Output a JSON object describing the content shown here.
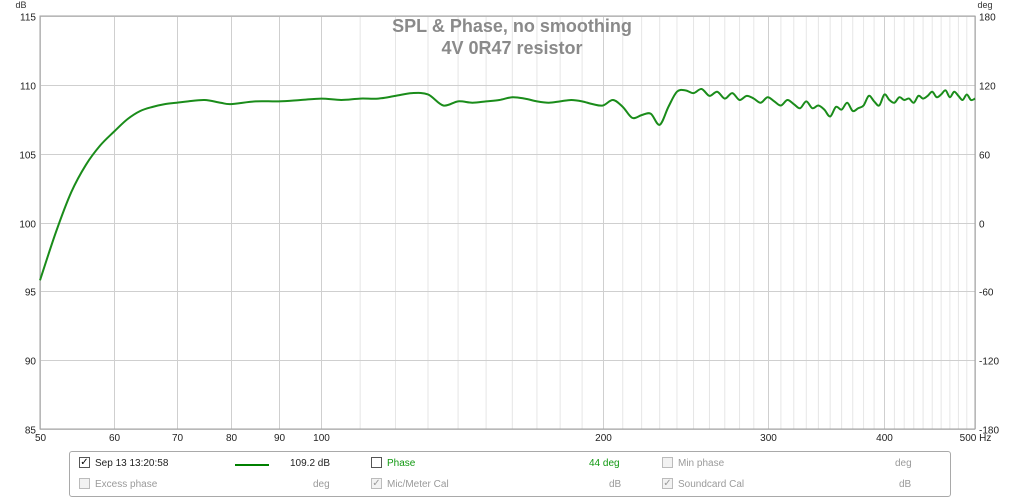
{
  "chart_data": {
    "type": "line",
    "title": "SPL & Phase, no smoothing",
    "subtitle": "4V 0R47 resistor",
    "xlabel": "Hz",
    "ylabel": "dB",
    "y2label": "deg",
    "x_scale": "log",
    "xlim": [
      50,
      500
    ],
    "ylim": [
      85,
      115
    ],
    "y2lim": [
      -180,
      180
    ],
    "grid": true,
    "x_ticks": [
      50,
      60,
      70,
      80,
      90,
      100,
      200,
      300,
      400,
      500
    ],
    "x_tick_labels": [
      "50",
      "60",
      "70",
      "80",
      "90",
      "100",
      "200",
      "300",
      "400",
      "500 Hz"
    ],
    "y_ticks": [
      85,
      90,
      95,
      100,
      105,
      110,
      115
    ],
    "y_tick_labels": [
      "85",
      "90",
      "95",
      "100",
      "105",
      "110",
      "115"
    ],
    "y2_ticks": [
      -180,
      -120,
      -60,
      0,
      60,
      120,
      180
    ],
    "y2_tick_labels": [
      "-180",
      "-120",
      "-60",
      "0",
      "60",
      "120",
      "180"
    ],
    "series": [
      {
        "name": "Sep 13 13:20:58",
        "color": "#1a8c1a",
        "x": [
          50,
          52,
          54,
          56,
          58,
          60,
          62,
          64,
          66,
          68,
          70,
          72,
          75,
          78,
          80,
          85,
          90,
          95,
          100,
          105,
          110,
          115,
          120,
          125,
          130,
          135,
          140,
          145,
          150,
          155,
          160,
          165,
          170,
          175,
          180,
          185,
          190,
          195,
          200,
          205,
          210,
          215,
          220,
          225,
          230,
          235,
          240,
          245,
          250,
          255,
          260,
          265,
          270,
          275,
          280,
          285,
          290,
          295,
          300,
          305,
          310,
          315,
          320,
          325,
          330,
          335,
          340,
          345,
          350,
          355,
          360,
          365,
          370,
          375,
          380,
          385,
          390,
          395,
          400,
          405,
          410,
          415,
          420,
          425,
          430,
          435,
          440,
          445,
          450,
          455,
          460,
          465,
          470,
          475,
          480,
          485,
          490,
          495,
          500
        ],
        "values": [
          95.8,
          99.3,
          102.2,
          104.2,
          105.6,
          106.6,
          107.5,
          108.1,
          108.4,
          108.6,
          108.7,
          108.8,
          108.9,
          108.7,
          108.6,
          108.8,
          108.8,
          108.9,
          109.0,
          108.9,
          109.0,
          109.0,
          109.2,
          109.4,
          109.3,
          108.5,
          108.8,
          108.7,
          108.8,
          108.9,
          109.1,
          109.0,
          108.8,
          108.7,
          108.8,
          108.9,
          108.8,
          108.6,
          108.5,
          108.9,
          108.4,
          107.6,
          107.8,
          107.9,
          107.1,
          108.4,
          109.5,
          109.6,
          109.4,
          109.7,
          109.2,
          109.5,
          109.0,
          109.4,
          108.9,
          109.2,
          109.0,
          108.7,
          109.1,
          108.8,
          108.5,
          108.9,
          108.6,
          108.3,
          108.8,
          108.3,
          108.5,
          108.2,
          107.7,
          108.4,
          108.2,
          108.7,
          108.1,
          108.3,
          108.5,
          109.2,
          108.8,
          108.5,
          109.3,
          108.9,
          108.7,
          109.1,
          108.9,
          109.0,
          108.7,
          109.2,
          109.0,
          109.2,
          109.5,
          109.1,
          109.3,
          109.6,
          109.1,
          109.5,
          109.2,
          108.9,
          109.3,
          108.9,
          109.0
        ]
      }
    ]
  },
  "legend": {
    "row1": {
      "trace_label": "Sep 13 13:20:58",
      "trace_checked": "✓",
      "trace_value": "109.2 dB",
      "phase_label": "Phase",
      "phase_value": "44 deg",
      "minphase_label": "Min phase",
      "minphase_unit": "deg"
    },
    "row2": {
      "excess_label": "Excess phase",
      "excess_unit": "deg",
      "mic_label": "Mic/Meter Cal",
      "mic_checked": "✓",
      "mic_unit": "dB",
      "soundcard_label": "Soundcard Cal",
      "soundcard_checked": "✓",
      "soundcard_unit": "dB"
    }
  }
}
